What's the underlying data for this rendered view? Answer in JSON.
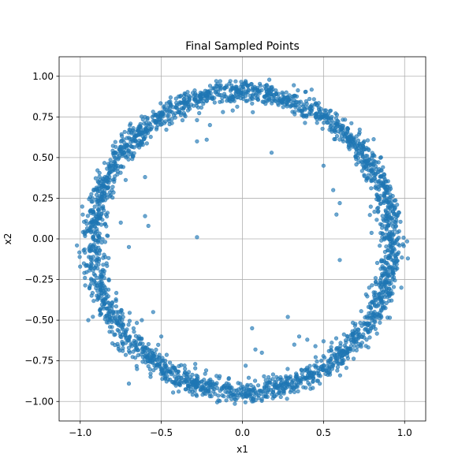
{
  "chart_data": {
    "type": "scatter",
    "title": "Final Sampled Points",
    "xlabel": "x1",
    "ylabel": "x2",
    "xlim": [
      -1.13,
      1.13
    ],
    "ylim": [
      -1.12,
      1.12
    ],
    "xticks": [
      -1.0,
      -0.5,
      0.0,
      0.5,
      1.0
    ],
    "xtick_labels": [
      "−1.0",
      "−0.5",
      "0.0",
      "0.5",
      "1.0"
    ],
    "yticks": [
      -1.0,
      -0.75,
      -0.5,
      -0.25,
      0.0,
      0.25,
      0.5,
      0.75,
      1.0
    ],
    "ytick_labels": [
      "−1.00",
      "−0.75",
      "−0.50",
      "−0.25",
      "0.00",
      "0.25",
      "0.50",
      "0.75",
      "1.00"
    ],
    "grid": true,
    "marker_color": "#1f77b4",
    "marker_alpha": 0.65,
    "ring": {
      "center": [
        0.0,
        -0.02
      ],
      "radius": 0.92,
      "spread": 0.035,
      "n_points": 2600
    },
    "outliers": [
      [
        -0.06,
        0.79
      ],
      [
        -0.12,
        0.78
      ],
      [
        -0.2,
        0.7
      ],
      [
        -0.28,
        0.73
      ],
      [
        -0.22,
        0.61
      ],
      [
        -0.28,
        0.6
      ],
      [
        0.18,
        0.53
      ],
      [
        0.5,
        0.45
      ],
      [
        0.2,
        0.85
      ],
      [
        -0.6,
        0.38
      ],
      [
        -0.6,
        0.14
      ],
      [
        -0.58,
        0.08
      ],
      [
        -0.75,
        0.1
      ],
      [
        -0.7,
        -0.05
      ],
      [
        -0.28,
        0.01
      ],
      [
        -0.55,
        -0.45
      ],
      [
        -0.62,
        -0.5
      ],
      [
        -0.5,
        -0.6
      ],
      [
        0.56,
        0.3
      ],
      [
        0.6,
        0.22
      ],
      [
        0.58,
        0.15
      ],
      [
        0.6,
        -0.13
      ],
      [
        0.06,
        -0.55
      ],
      [
        0.08,
        -0.68
      ],
      [
        0.28,
        -0.48
      ],
      [
        0.32,
        -0.65
      ],
      [
        0.35,
        -0.6
      ],
      [
        0.4,
        -0.62
      ],
      [
        0.45,
        -0.66
      ],
      [
        0.5,
        -0.63
      ],
      [
        0.02,
        -0.78
      ],
      [
        0.12,
        -0.7
      ],
      [
        -0.7,
        -0.89
      ],
      [
        -0.55,
        -0.72
      ],
      [
        -0.65,
        -0.8
      ],
      [
        0.65,
        -0.6
      ],
      [
        -1.02,
        -0.04
      ],
      [
        -1.0,
        -0.17
      ],
      [
        -0.95,
        -0.5
      ],
      [
        0.98,
        -0.3
      ],
      [
        1.02,
        -0.12
      ]
    ]
  }
}
